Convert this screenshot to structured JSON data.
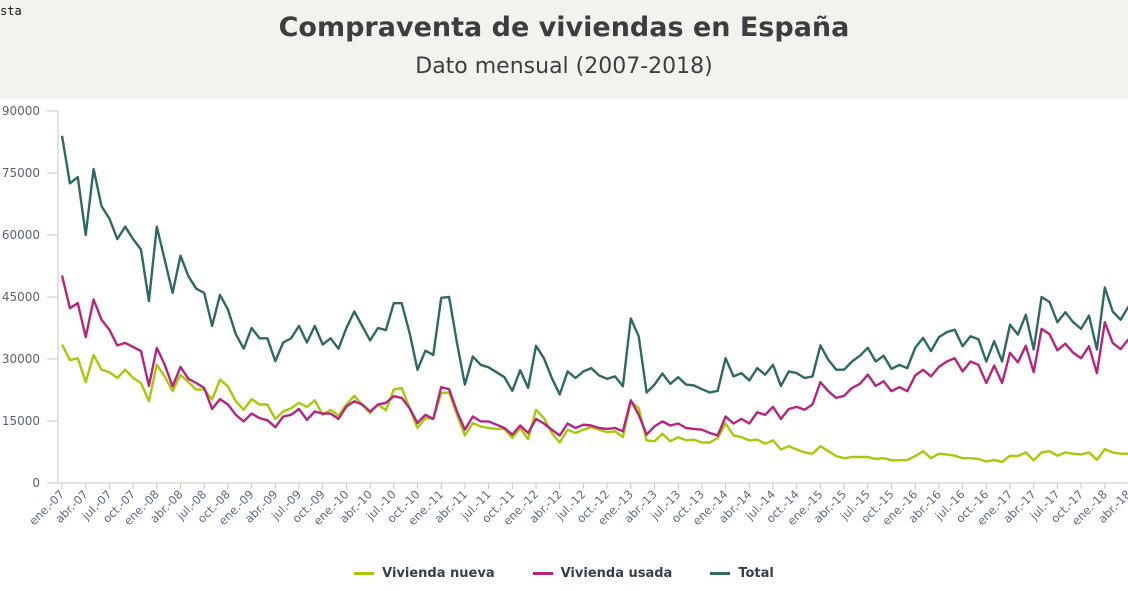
{
  "corner_text": "sta",
  "chart_data": {
    "type": "line",
    "title": "Compraventa de viviendas en España",
    "subtitle": "Dato mensual (2007-2018)",
    "xlabel": "",
    "ylabel": "",
    "ylim": [
      0,
      90000
    ],
    "yticks": [
      0,
      15000,
      30000,
      45000,
      60000,
      75000,
      90000
    ],
    "values_scale": 1000,
    "start": "ene-07",
    "xtick_labels": [
      "ene.-07",
      "abr.-07",
      "jul.-07",
      "oct.-07",
      "ene.-08",
      "abr.-08",
      "jul.-08",
      "oct.-08",
      "ene.-09",
      "abr.-09",
      "jul.-09",
      "oct.-09",
      "ene.-10",
      "abr.-10",
      "jul.-10",
      "oct.-10",
      "ene.-11",
      "abr.-11",
      "jul.-11",
      "oct.-11",
      "ene.-12",
      "abr.-12",
      "jul.-12",
      "oct.-12",
      "ene.-13",
      "abr.-13",
      "jul.-13",
      "oct.-13",
      "ene.-14",
      "abr.-14",
      "jul.-14",
      "oct.-14",
      "ene.-15",
      "abr.-15",
      "jul.-15",
      "oct.-15",
      "ene.-16",
      "abr.-16",
      "jul.-16",
      "oct.-16",
      "ene.-17",
      "abr.-17",
      "jul.-17",
      "oct.-17",
      "ene.-18",
      "abr.-18"
    ],
    "grid": false,
    "legend_position": "bottom-center",
    "series": [
      {
        "name": "Vivienda nueva",
        "color": "#a9c80a",
        "values": [
          33.5,
          29.7,
          30.2,
          24.4,
          31,
          27.4,
          26.8,
          25.4,
          27.4,
          25.4,
          24.2,
          19.8,
          28.6,
          25.8,
          22.2,
          26.2,
          24.4,
          22.6,
          22.6,
          20.2,
          25,
          23.4,
          19.8,
          17.7,
          20.3,
          19,
          19,
          15.5,
          17.3,
          18.1,
          19.4,
          18.4,
          20,
          16.5,
          17.7,
          16.3,
          19,
          21.1,
          19,
          16.9,
          19,
          17.6,
          22.6,
          23,
          18.1,
          13.3,
          15.7,
          15.5,
          21.8,
          21.9,
          16.5,
          11.5,
          14.5,
          13.7,
          13.3,
          13.1,
          13.1,
          10.9,
          13.3,
          10.6,
          17.7,
          15.7,
          12.1,
          9.8,
          12.9,
          12.1,
          12.9,
          13.5,
          12.9,
          12.3,
          12.5,
          11.1,
          19.8,
          18.1,
          10.3,
          10.1,
          11.9,
          10.1,
          11.1,
          10.3,
          10.5,
          9.8,
          9.8,
          10.9,
          14.4,
          11.5,
          11.1,
          10.3,
          10.5,
          9.5,
          10.3,
          8.1,
          8.9,
          8.1,
          7.4,
          7.1,
          8.9,
          7.7,
          6.5,
          6.0,
          6.3,
          6.3,
          6.3,
          5.8,
          6.0,
          5.5,
          5.5,
          5.6,
          6.5,
          7.7,
          6.0,
          7.1,
          6.9,
          6.6,
          6.0,
          6.0,
          5.8,
          5.2,
          5.6,
          5.1,
          6.6,
          6.5,
          7.4,
          5.5,
          7.4,
          7.7,
          6.6,
          7.4,
          7.1,
          6.9,
          7.4,
          5.6,
          8.2,
          7.4,
          7.1,
          7.1
        ]
      },
      {
        "name": "Vivienda usada",
        "color": "#b5257f",
        "values": [
          50.2,
          42.3,
          43.5,
          35.3,
          44.4,
          39.5,
          37.1,
          33.3,
          33.9,
          32.9,
          31.9,
          23.5,
          32.7,
          28.6,
          23.4,
          28.1,
          25.2,
          24.2,
          23,
          17.9,
          20.3,
          19,
          16.5,
          14.9,
          16.8,
          15.7,
          15.2,
          13.5,
          16.1,
          16.5,
          17.9,
          15.3,
          17.3,
          16.8,
          16.8,
          15.5,
          18.5,
          19.8,
          19,
          17.3,
          19,
          19.4,
          21,
          20.6,
          18.1,
          14.5,
          16.5,
          15.5,
          23.2,
          22.7,
          17.3,
          12.9,
          16.1,
          14.9,
          14.9,
          14.1,
          13.3,
          11.7,
          13.9,
          12.1,
          15.5,
          14.4,
          12.9,
          11.5,
          14.4,
          13.3,
          14.1,
          13.9,
          13.3,
          13.1,
          13.3,
          12.5,
          20,
          16.5,
          11.7,
          13.7,
          14.9,
          13.9,
          14.4,
          13.3,
          13.1,
          12.9,
          12.1,
          11.5,
          16.1,
          14.4,
          15.5,
          14.4,
          17.1,
          16.5,
          18.4,
          15.5,
          17.9,
          18.4,
          17.7,
          19.0,
          24.4,
          22.2,
          20.6,
          21.1,
          23,
          24,
          26.2,
          23.5,
          24.6,
          22.2,
          23.2,
          22.2,
          26,
          27.4,
          25.8,
          28.1,
          29.4,
          30.2,
          27,
          29.4,
          28.6,
          24.2,
          28.4,
          24.2,
          31.5,
          29.2,
          33.2,
          26.8,
          37.3,
          36,
          32.1,
          33.7,
          31.5,
          30.2,
          33.1,
          26.6,
          38.9,
          33.9,
          32.4,
          34.8
        ]
      },
      {
        "name": "Total",
        "color": "#2f6866",
        "values": [
          84,
          72.5,
          74,
          60,
          76,
          67,
          64,
          59,
          62,
          59,
          56.5,
          44,
          62,
          54,
          46,
          55,
          50,
          47,
          46,
          38,
          45.5,
          42,
          36,
          32.5,
          37.5,
          35,
          35,
          29.5,
          34,
          35,
          38,
          34,
          38,
          33.5,
          35,
          32.5,
          37.5,
          41.5,
          38,
          34.5,
          37.5,
          37,
          43.5,
          43.5,
          36.3,
          27.4,
          32,
          31,
          44.8,
          45,
          33.9,
          23.8,
          30.6,
          28.6,
          28,
          26.8,
          25.6,
          22.3,
          27.3,
          23,
          33.2,
          30.2,
          25.4,
          21.4,
          27,
          25.4,
          27,
          27.8,
          26,
          25.2,
          25.8,
          23.4,
          39.8,
          35.5,
          21.9,
          23.8,
          26.5,
          24,
          25.6,
          23.8,
          23.6,
          22.7,
          21.9,
          22.3,
          30.2,
          25.8,
          26.6,
          24.8,
          27.8,
          26.2,
          28.6,
          23.5,
          27.0,
          26.6,
          25.4,
          25.8,
          33.3,
          29.8,
          27.4,
          27.4,
          29.4,
          30.8,
          32.7,
          29.4,
          30.8,
          27.6,
          28.6,
          27.8,
          32.7,
          35.1,
          31.9,
          35.3,
          36.5,
          37.1,
          33.1,
          35.5,
          34.8,
          29.4,
          34.3,
          29.4,
          38.3,
          35.9,
          40.7,
          32.3,
          45.0,
          43.8,
          38.9,
          41.3,
          38.9,
          37.3,
          40.5,
          32.3,
          47.3,
          41.5,
          39.5,
          42.7
        ]
      }
    ]
  }
}
